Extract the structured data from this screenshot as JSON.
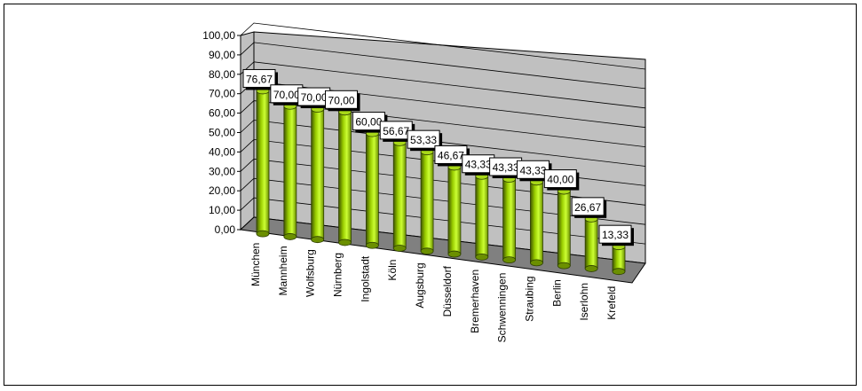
{
  "chart_data": {
    "type": "bar",
    "title": "",
    "xlabel": "",
    "ylabel": "",
    "ylim": [
      0,
      100
    ],
    "yticks": [
      "0,00",
      "10,00",
      "20,00",
      "30,00",
      "40,00",
      "50,00",
      "60,00",
      "70,00",
      "80,00",
      "90,00",
      "100,00"
    ],
    "categories": [
      "München",
      "Mannheim",
      "Wolfsburg",
      "Nürnberg",
      "Ingolstadt",
      "Köln",
      "Augsburg",
      "Düsseldorf",
      "Bremerhaven",
      "Schwenningen",
      "Straubing",
      "Berlin",
      "Iserlohn",
      "Krefeld"
    ],
    "values": [
      76.67,
      70.0,
      70.0,
      70.0,
      60.0,
      56.67,
      53.33,
      46.67,
      43.33,
      43.33,
      43.33,
      40.0,
      26.67,
      13.33
    ],
    "value_labels": [
      "76,67",
      "70,00",
      "70,00",
      "70,00",
      "60,00",
      "56,67",
      "53,33",
      "46,67",
      "43,33",
      "43,33",
      "43,33",
      "40,00",
      "26,67",
      "13,33"
    ],
    "grid": true,
    "style": "3d-cylinder",
    "colors": {
      "bar_light": "#ccff33",
      "bar_mid": "#99cc00",
      "bar_dark": "#4d6600",
      "wall": "#c0c0c0",
      "floor": "#808080",
      "gridline": "#000000"
    }
  }
}
